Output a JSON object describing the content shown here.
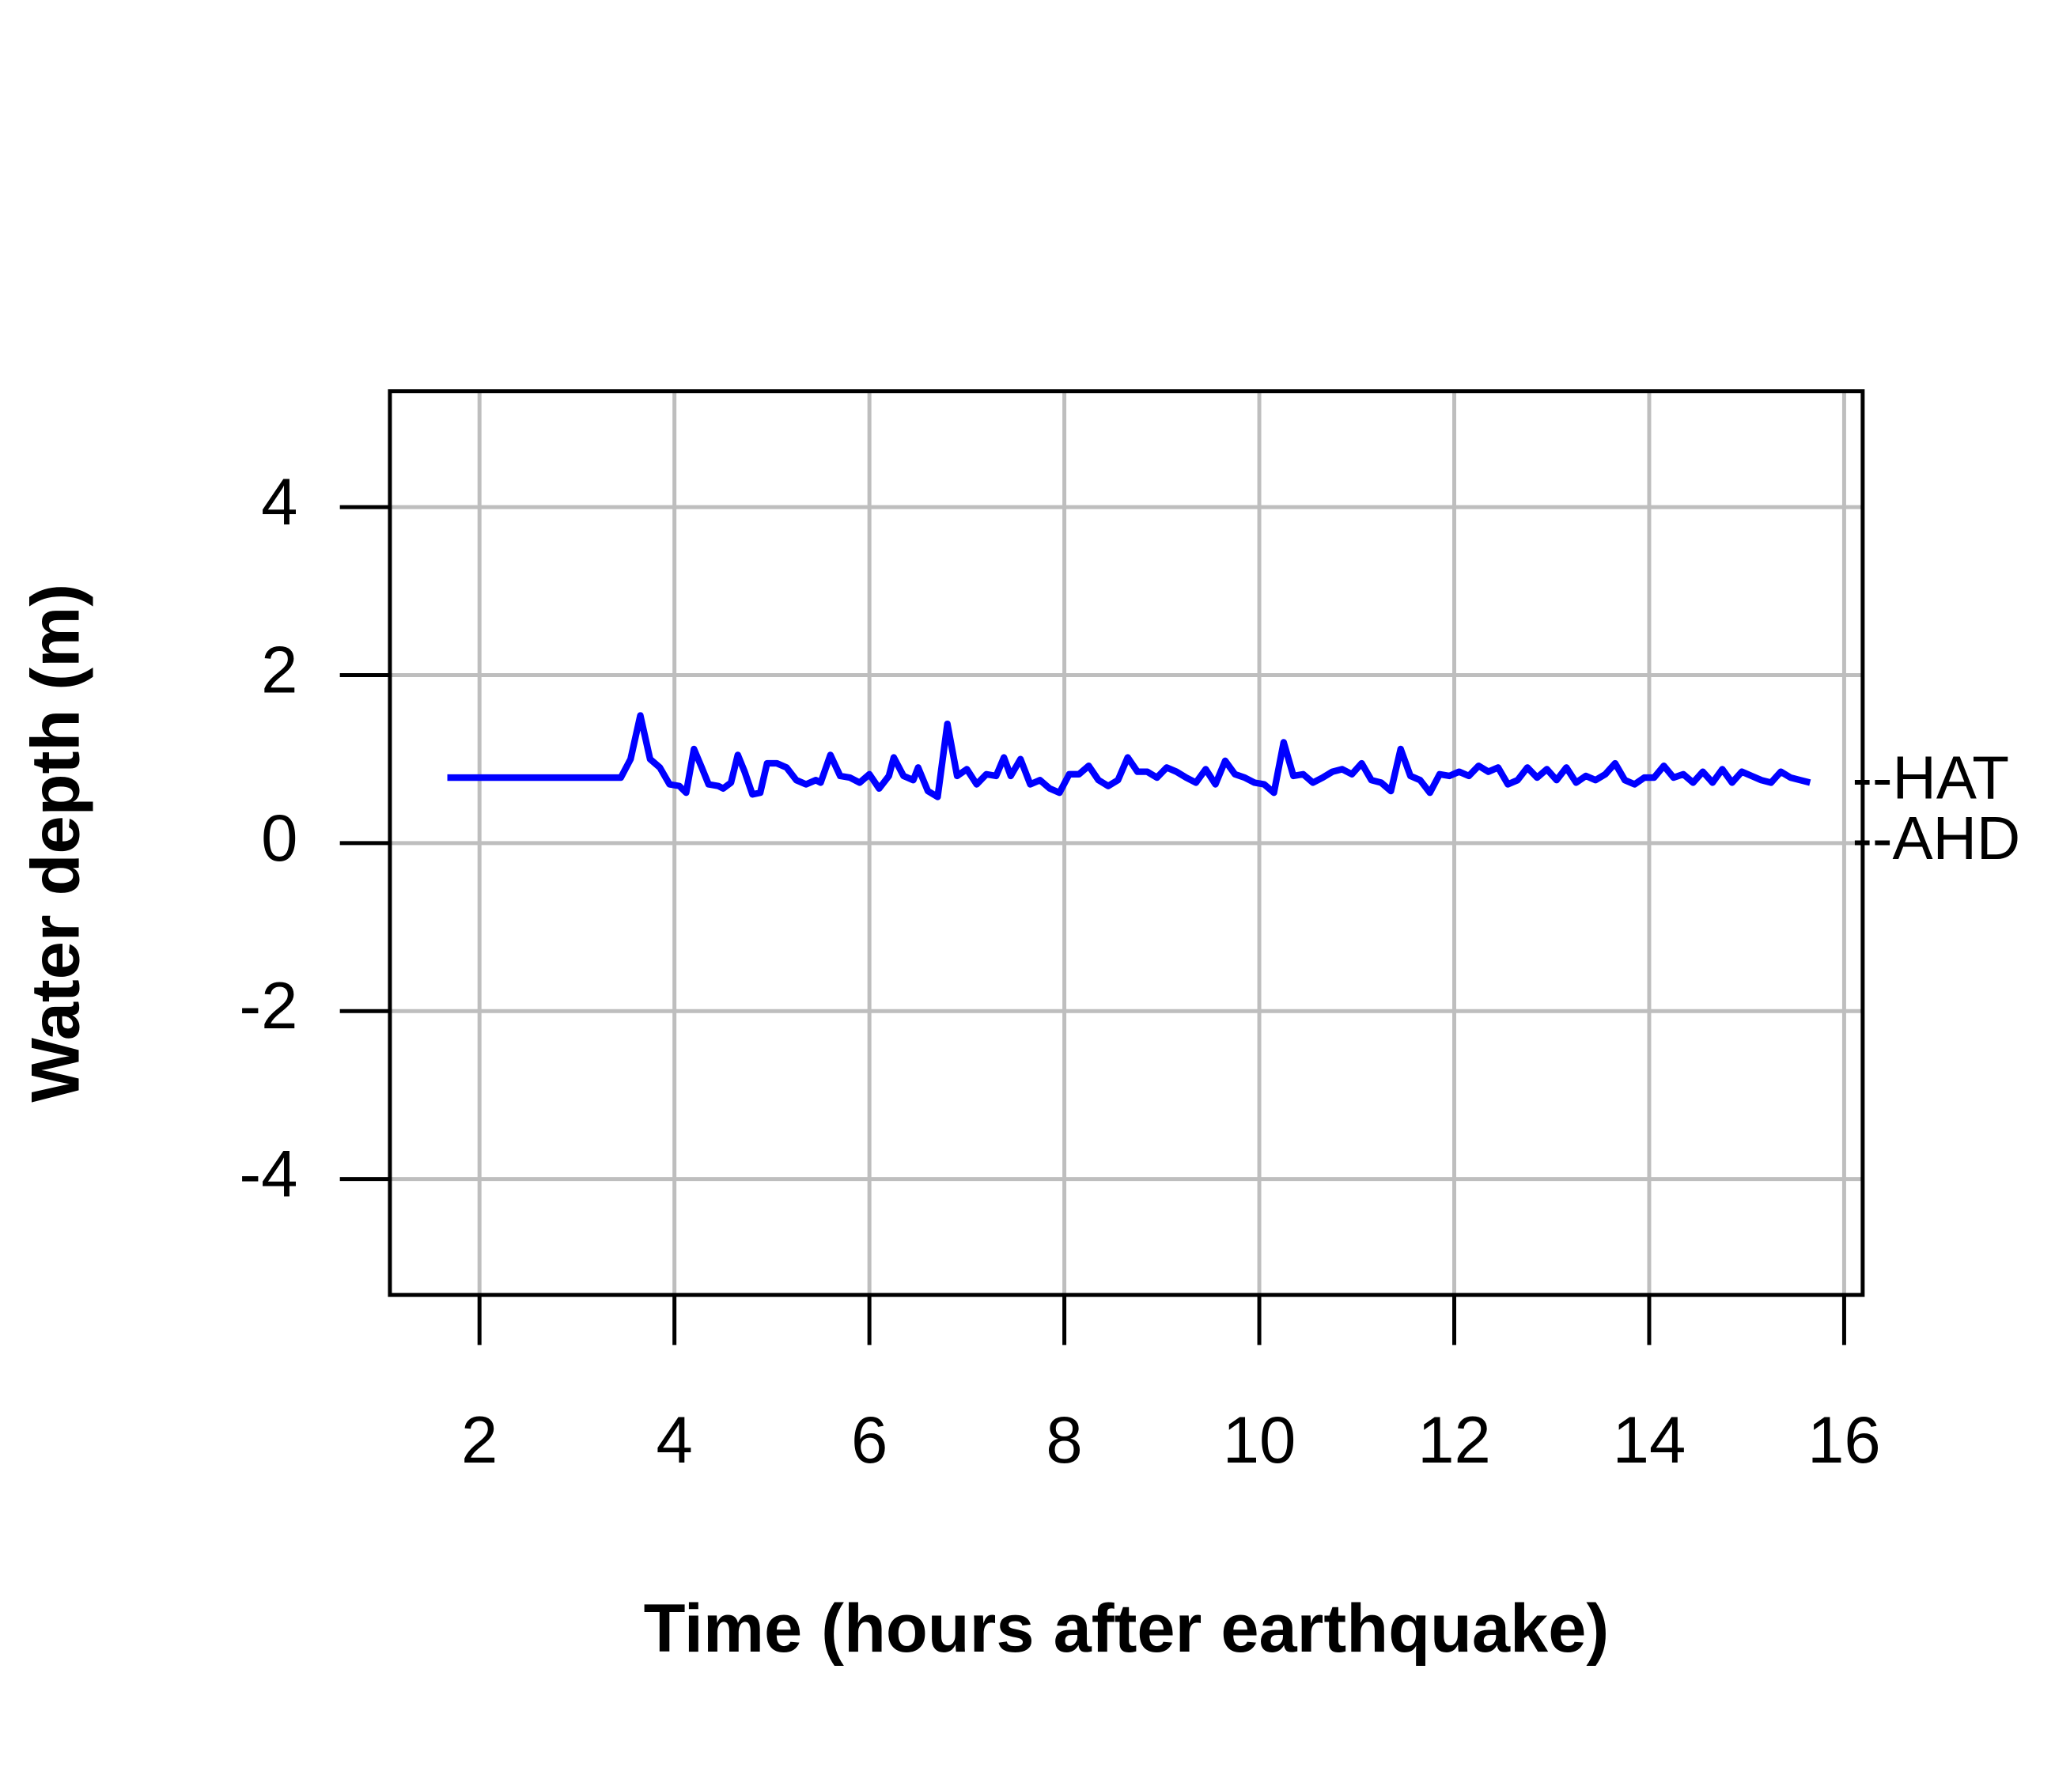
{
  "chart_data": {
    "type": "line",
    "x_label": "Time (hours after earthquake)",
    "y_label": "Water depth (m)",
    "xlim": [
      1.081,
      16.19
    ],
    "ylim": [
      -5.38,
      5.38
    ],
    "xticks": [
      2,
      4,
      6,
      8,
      10,
      12,
      14,
      16
    ],
    "yticks": [
      -4,
      -2,
      0,
      2,
      4
    ],
    "grid": true,
    "annotations": [
      {
        "text": "--HAT",
        "y": 0.72
      },
      {
        "text": "--AHD",
        "y": 0
      }
    ],
    "x": [
      1.67,
      3.45,
      3.55,
      3.65,
      3.75,
      3.85,
      3.95,
      4.05,
      4.12,
      4.2,
      4.28,
      4.35,
      4.45,
      4.5,
      4.58,
      4.65,
      4.72,
      4.8,
      4.88,
      4.95,
      5.05,
      5.15,
      5.25,
      5.35,
      5.45,
      5.5,
      5.6,
      5.7,
      5.8,
      5.9,
      6.0,
      6.1,
      6.2,
      6.25,
      6.35,
      6.45,
      6.5,
      6.6,
      6.7,
      6.8,
      6.9,
      7.0,
      7.1,
      7.2,
      7.3,
      7.38,
      7.45,
      7.55,
      7.65,
      7.75,
      7.85,
      7.95,
      8.05,
      8.15,
      8.25,
      8.35,
      8.45,
      8.55,
      8.65,
      8.75,
      8.85,
      8.95,
      9.05,
      9.15,
      9.25,
      9.35,
      9.45,
      9.55,
      9.65,
      9.75,
      9.85,
      9.95,
      10.05,
      10.15,
      10.25,
      10.35,
      10.45,
      10.55,
      10.65,
      10.75,
      10.85,
      10.95,
      11.05,
      11.15,
      11.25,
      11.35,
      11.45,
      11.55,
      11.65,
      11.75,
      11.85,
      11.95,
      12.05,
      12.15,
      12.25,
      12.35,
      12.45,
      12.55,
      12.65,
      12.75,
      12.85,
      12.95,
      13.05,
      13.15,
      13.25,
      13.35,
      13.45,
      13.55,
      13.65,
      13.75,
      13.85,
      13.95,
      14.05,
      14.15,
      14.25,
      14.35,
      14.45,
      14.55,
      14.65,
      14.75,
      14.85,
      14.95,
      15.05,
      15.15,
      15.25,
      15.35,
      15.45,
      15.55,
      15.65
    ],
    "series": [
      {
        "color": "#0000ff",
        "values": [
          0.78,
          0.78,
          1.0,
          1.52,
          1.0,
          0.9,
          0.7,
          0.68,
          0.6,
          1.12,
          0.9,
          0.7,
          0.68,
          0.65,
          0.72,
          1.05,
          0.85,
          0.58,
          0.6,
          0.95,
          0.95,
          0.9,
          0.75,
          0.7,
          0.75,
          0.72,
          1.05,
          0.8,
          0.78,
          0.72,
          0.82,
          0.65,
          0.8,
          1.02,
          0.8,
          0.75,
          0.9,
          0.62,
          0.55,
          1.42,
          0.8,
          0.88,
          0.7,
          0.82,
          0.8,
          1.02,
          0.8,
          1.0,
          0.7,
          0.75,
          0.65,
          0.6,
          0.82,
          0.82,
          0.92,
          0.75,
          0.68,
          0.75,
          1.02,
          0.85,
          0.85,
          0.78,
          0.9,
          0.85,
          0.78,
          0.72,
          0.88,
          0.7,
          0.98,
          0.82,
          0.78,
          0.72,
          0.7,
          0.6,
          1.2,
          0.8,
          0.82,
          0.72,
          0.78,
          0.85,
          0.88,
          0.82,
          0.95,
          0.75,
          0.72,
          0.62,
          1.12,
          0.8,
          0.75,
          0.6,
          0.82,
          0.8,
          0.85,
          0.8,
          0.92,
          0.85,
          0.9,
          0.7,
          0.75,
          0.9,
          0.78,
          0.88,
          0.75,
          0.9,
          0.72,
          0.8,
          0.75,
          0.82,
          0.95,
          0.75,
          0.7,
          0.78,
          0.78,
          0.92,
          0.78,
          0.82,
          0.72,
          0.85,
          0.72,
          0.88,
          0.72,
          0.85,
          0.8,
          0.75,
          0.72,
          0.85,
          0.78,
          0.75,
          0.72
        ]
      }
    ]
  }
}
